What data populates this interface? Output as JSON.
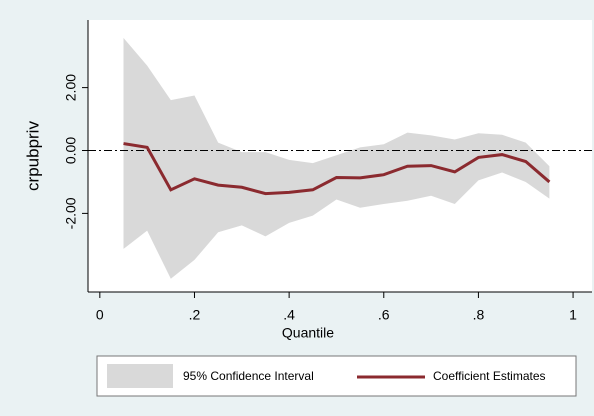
{
  "chart_data": {
    "type": "line",
    "x_label": "Quantile",
    "y_label": "crpubpriv",
    "x": [
      0.05,
      0.1,
      0.15,
      0.2,
      0.25,
      0.3,
      0.35,
      0.4,
      0.45,
      0.5,
      0.55,
      0.6,
      0.65,
      0.7,
      0.75,
      0.8,
      0.85,
      0.9,
      0.95
    ],
    "band": {
      "name": "95% Confidence Interval",
      "color": "#d9d9d9",
      "upper": [
        3.58,
        2.7,
        1.6,
        1.75,
        0.25,
        -0.05,
        -0.05,
        -0.3,
        -0.4,
        -0.15,
        0.1,
        0.2,
        0.57,
        0.48,
        0.35,
        0.55,
        0.5,
        0.25,
        -0.5
      ],
      "lower": [
        -3.13,
        -2.55,
        -4.08,
        -3.48,
        -2.6,
        -2.38,
        -2.73,
        -2.3,
        -2.07,
        -1.56,
        -1.82,
        -1.7,
        -1.6,
        -1.44,
        -1.7,
        -0.95,
        -0.7,
        -1.0,
        -1.53
      ]
    },
    "series": [
      {
        "name": "Coefficient Estimates",
        "color": "#8b2a2f",
        "values": [
          0.22,
          0.1,
          -1.25,
          -0.9,
          -1.1,
          -1.17,
          -1.37,
          -1.33,
          -1.25,
          -0.86,
          -0.87,
          -0.77,
          -0.5,
          -0.48,
          -0.68,
          -0.22,
          -0.13,
          -0.35,
          -1.0
        ]
      }
    ],
    "reference_line": 0,
    "xlim": [
      -0.025,
      1.04
    ],
    "ylim": [
      -4.5,
      4.15
    ],
    "xticks": [
      0,
      {
        "value": 0.2,
        "label": ".2"
      },
      {
        "value": 0.4,
        "label": ".4"
      },
      {
        "value": 0.6,
        "label": ".6"
      },
      {
        "value": 0.8,
        "label": ".8"
      },
      1
    ],
    "yticks": [
      {
        "value": -2,
        "label": "-2.00"
      },
      {
        "value": 0,
        "label": "0.00"
      },
      {
        "value": 2,
        "label": "2.00"
      }
    ]
  }
}
